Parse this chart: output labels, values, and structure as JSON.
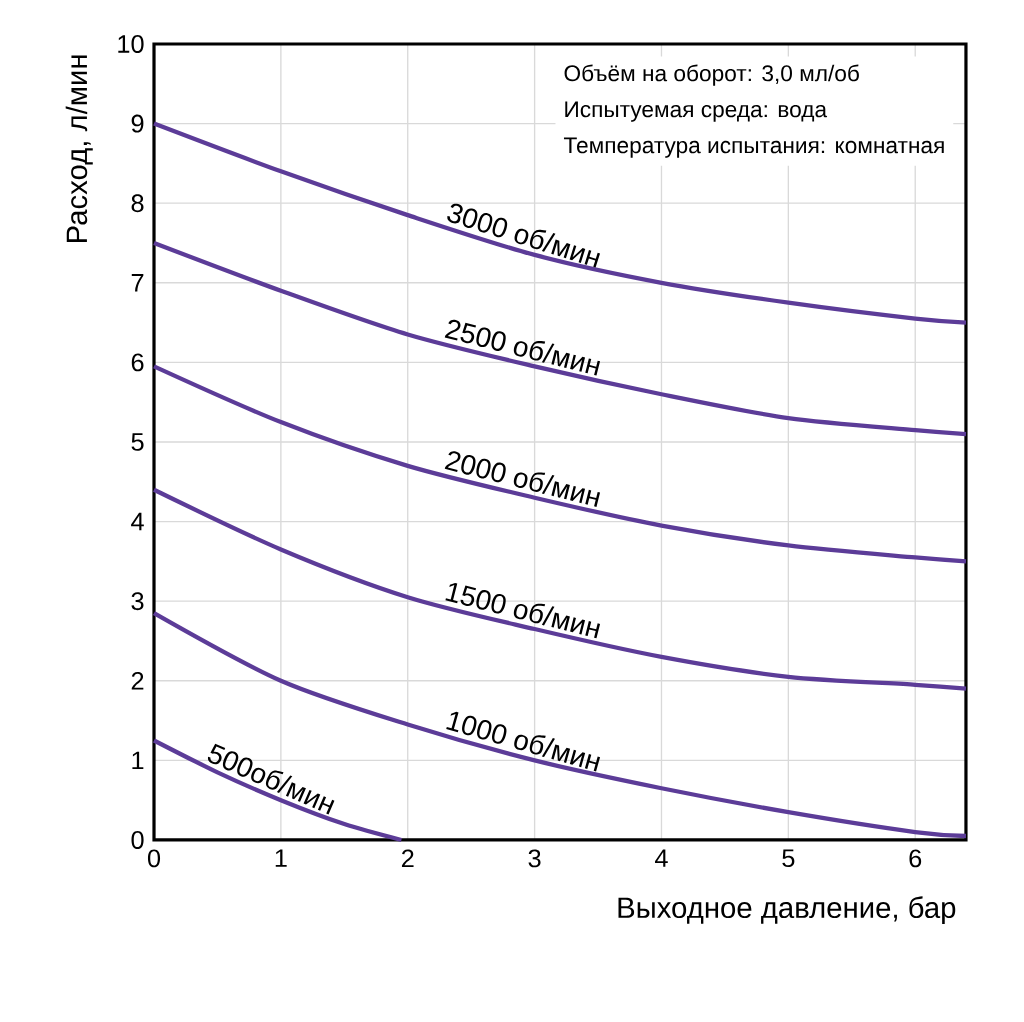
{
  "chart_data": {
    "type": "line",
    "xlabel": "Выходное давление, бар",
    "ylabel": "Расход, л/мин",
    "x": [
      0,
      1,
      2,
      3,
      4,
      5,
      6,
      6.4
    ],
    "series": [
      {
        "name": "3000 об/мин",
        "color": "#5c3c98",
        "values": [
          9.0,
          8.4,
          7.85,
          7.35,
          7.0,
          6.75,
          6.55,
          6.5
        ]
      },
      {
        "name": "2500 об/мин",
        "color": "#5c3c98",
        "values": [
          7.5,
          6.9,
          6.35,
          5.95,
          5.6,
          5.3,
          5.15,
          5.1
        ]
      },
      {
        "name": "2000 об/мин",
        "color": "#5c3c98",
        "values": [
          5.95,
          5.25,
          4.7,
          4.3,
          3.95,
          3.7,
          3.55,
          3.5
        ]
      },
      {
        "name": "1500 об/мин",
        "color": "#5c3c98",
        "values": [
          4.4,
          3.65,
          3.05,
          2.65,
          2.3,
          2.05,
          1.95,
          1.9
        ]
      },
      {
        "name": "1000 об/мин",
        "color": "#5c3c98",
        "values": [
          2.85,
          2.0,
          1.45,
          1.0,
          0.65,
          0.35,
          0.1,
          0.05
        ]
      },
      {
        "name": "500об/мин",
        "color": "#5c3c98",
        "x": [
          0,
          0.5,
          1,
          1.5,
          1.95
        ],
        "values": [
          1.25,
          0.85,
          0.5,
          0.2,
          0
        ]
      }
    ],
    "xlim": [
      0,
      6.4
    ],
    "ylim": [
      0,
      10
    ],
    "xticks": [
      0,
      1,
      2,
      3,
      4,
      5,
      6
    ],
    "yticks": [
      0,
      1,
      2,
      3,
      4,
      5,
      6,
      7,
      8,
      9,
      10
    ],
    "grid": true,
    "annotations": [
      "Объём на оборот: 3,0 мл/об",
      "Испытуемая среда: вода",
      "Температура испытания: комнатная"
    ]
  }
}
